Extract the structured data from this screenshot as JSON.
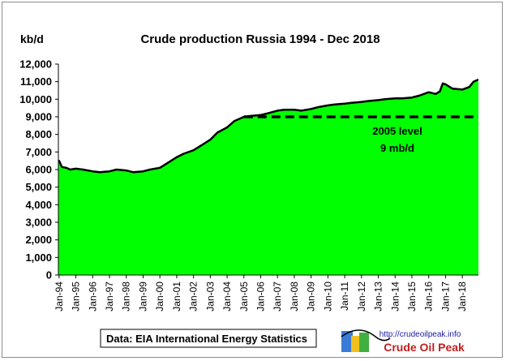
{
  "chart_data": {
    "type": "area",
    "title": "Crude  production Russia 1994 - Dec 2018",
    "ylabel": "kb/d",
    "xlabel": "",
    "ylim": [
      0,
      12000
    ],
    "y_ticks": [
      0,
      1000,
      2000,
      3000,
      4000,
      5000,
      6000,
      7000,
      8000,
      9000,
      10000,
      11000,
      12000
    ],
    "y_tick_labels": [
      "0",
      "1,000",
      "2,000",
      "3,000",
      "4,000",
      "5,000",
      "6,000",
      "7,000",
      "8,000",
      "9,000",
      "10,000",
      "11,000",
      "12,000"
    ],
    "x_start": "Jan-94",
    "x_end": "Dec-18",
    "x_tick_labels": [
      "Jan-94",
      "Jan-95",
      "Jan-96",
      "Jan-97",
      "Jan-98",
      "Jan-99",
      "Jan-00",
      "Jan-01",
      "Jan-02",
      "Jan-03",
      "Jan-04",
      "Jan-05",
      "Jan-06",
      "Jan-07",
      "Jan-08",
      "Jan-09",
      "Jan-10",
      "Jan-11",
      "Jan-12",
      "Jan-13",
      "Jan-14",
      "Jan-15",
      "Jan-16",
      "Jan-17",
      "Jan-18"
    ],
    "series": [
      {
        "color": "#00ff00",
        "line_color": "#000000",
        "points": [
          [
            "Jan-94",
            6500
          ],
          [
            "Mar-94",
            6150
          ],
          [
            "Jun-94",
            6100
          ],
          [
            "Sep-94",
            6000
          ],
          [
            "Jan-95",
            6050
          ],
          [
            "Jun-95",
            6000
          ],
          [
            "Jan-96",
            5900
          ],
          [
            "Jun-96",
            5850
          ],
          [
            "Jan-97",
            5900
          ],
          [
            "Jun-97",
            6000
          ],
          [
            "Jan-98",
            5950
          ],
          [
            "Jun-98",
            5850
          ],
          [
            "Jan-99",
            5900
          ],
          [
            "Jun-99",
            6000
          ],
          [
            "Jan-00",
            6100
          ],
          [
            "Jun-00",
            6350
          ],
          [
            "Jan-01",
            6700
          ],
          [
            "Jun-01",
            6900
          ],
          [
            "Jan-02",
            7100
          ],
          [
            "Jun-02",
            7350
          ],
          [
            "Jan-03",
            7700
          ],
          [
            "Jun-03",
            8100
          ],
          [
            "Jan-04",
            8400
          ],
          [
            "Jun-04",
            8750
          ],
          [
            "Jan-05",
            9000
          ],
          [
            "Jun-05",
            9050
          ],
          [
            "Jan-06",
            9100
          ],
          [
            "Jun-06",
            9200
          ],
          [
            "Jan-07",
            9350
          ],
          [
            "Jun-07",
            9400
          ],
          [
            "Jan-08",
            9400
          ],
          [
            "Jun-08",
            9350
          ],
          [
            "Jan-09",
            9450
          ],
          [
            "Jun-09",
            9550
          ],
          [
            "Jan-10",
            9650
          ],
          [
            "Jun-10",
            9700
          ],
          [
            "Jan-11",
            9750
          ],
          [
            "Jun-11",
            9800
          ],
          [
            "Jan-12",
            9850
          ],
          [
            "Jun-12",
            9900
          ],
          [
            "Jan-13",
            9950
          ],
          [
            "Jun-13",
            10000
          ],
          [
            "Jan-14",
            10050
          ],
          [
            "Jun-14",
            10050
          ],
          [
            "Jan-15",
            10100
          ],
          [
            "Jun-15",
            10200
          ],
          [
            "Jan-16",
            10400
          ],
          [
            "Jun-16",
            10300
          ],
          [
            "Sep-16",
            10450
          ],
          [
            "Nov-16",
            10900
          ],
          [
            "Jan-17",
            10850
          ],
          [
            "Jun-17",
            10600
          ],
          [
            "Jan-18",
            10550
          ],
          [
            "Jun-18",
            10700
          ],
          [
            "Sep-18",
            11000
          ],
          [
            "Dec-18",
            11100
          ]
        ]
      }
    ],
    "reference_line": {
      "value": 9000,
      "from": "Jan-05",
      "to": "Dec-18",
      "style": "dashed",
      "label_line1": "2005 level",
      "label_line2": "9 mb/d"
    },
    "grid": false,
    "legend": "none"
  },
  "source_note": "Data: EIA International Energy Statistics",
  "logo": {
    "url_text": "http://crudeoilpeak.info",
    "name": "Crude Oil Peak"
  }
}
